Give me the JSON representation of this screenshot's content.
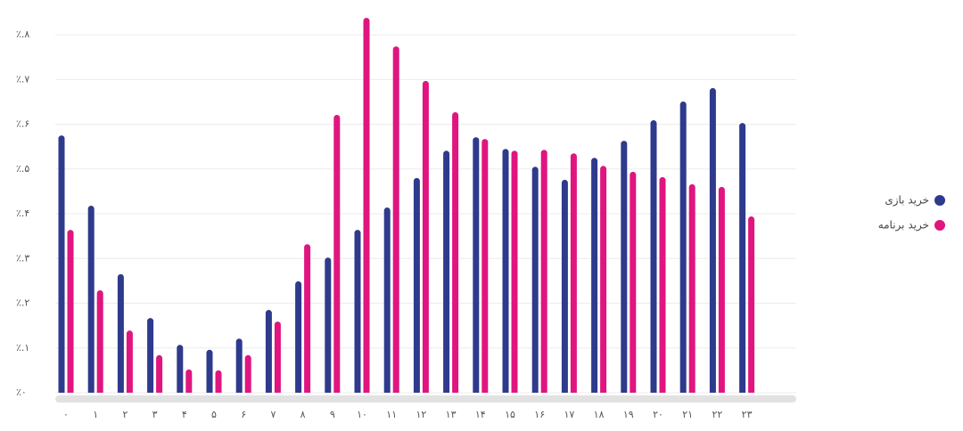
{
  "chart_data": {
    "type": "bar",
    "categories": [
      "۰",
      "۱",
      "۲",
      "۳",
      "۴",
      "۵",
      "۶",
      "۷",
      "۸",
      "۹",
      "۱۰",
      "۱۱",
      "۱۲",
      "۱۳",
      "۱۴",
      "۱۵",
      "۱۶",
      "۱۷",
      "۱۸",
      "۱۹",
      "۲۰",
      "۲۱",
      "۲۲",
      "۲۳"
    ],
    "series": [
      {
        "name": "خرید بازی",
        "color": "#2e3a8c",
        "values": [
          0.575,
          0.418,
          0.265,
          0.167,
          0.107,
          0.096,
          0.121,
          0.185,
          0.249,
          0.302,
          0.364,
          0.414,
          0.48,
          0.541,
          0.571,
          0.545,
          0.505,
          0.476,
          0.525,
          0.563,
          0.609,
          0.651,
          0.681,
          0.603
        ]
      },
      {
        "name": "خرید برنامه",
        "color": "#e0157f",
        "values": [
          0.364,
          0.229,
          0.139,
          0.084,
          0.052,
          0.05,
          0.084,
          0.159,
          0.332,
          0.621,
          0.838,
          0.774,
          0.697,
          0.627,
          0.567,
          0.541,
          0.543,
          0.535,
          0.507,
          0.494,
          0.482,
          0.466,
          0.46,
          0.394
        ]
      }
    ],
    "ylim": [
      0,
      0.84
    ],
    "yticks": [
      {
        "value": 0,
        "label": "٪۰"
      },
      {
        "value": 0.1,
        "label": "٪.۱"
      },
      {
        "value": 0.2,
        "label": "٪.۲"
      },
      {
        "value": 0.3,
        "label": "٪.۳"
      },
      {
        "value": 0.4,
        "label": "٪.۴"
      },
      {
        "value": 0.5,
        "label": "٪.۵"
      },
      {
        "value": 0.6,
        "label": "٪.۶"
      },
      {
        "value": 0.7,
        "label": "٪.۷"
      },
      {
        "value": 0.8,
        "label": "٪.۸"
      }
    ],
    "grid": true,
    "legend": "right"
  }
}
